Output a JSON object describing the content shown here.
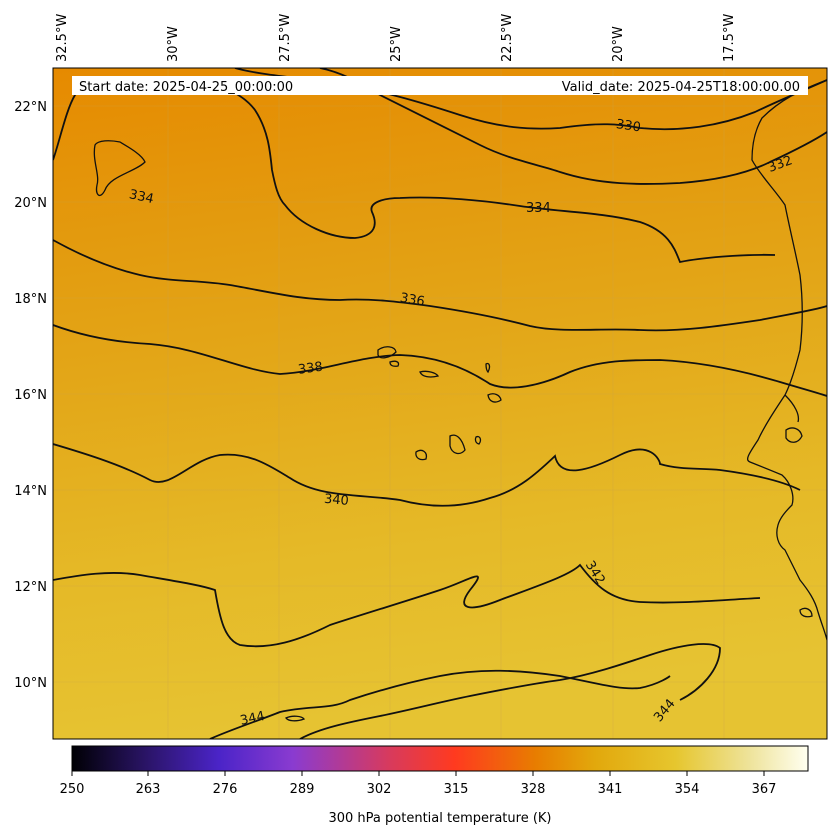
{
  "header": {
    "start_date": "Start date: 2025-04-25_00:00:00",
    "valid_date": "Valid_date: 2025-04-25T18:00:00.00"
  },
  "map": {
    "lon_labels": [
      "32.5°W",
      "30°W",
      "27.5°W",
      "25°W",
      "22.5°W",
      "20°W",
      "17.5°W"
    ],
    "lat_labels": [
      "22°N",
      "20°N",
      "18°N",
      "16°N",
      "14°N",
      "12°N",
      "10°N"
    ],
    "contour_labels": [
      "330",
      "332",
      "334",
      "334",
      "336",
      "338",
      "340",
      "342",
      "344",
      "344"
    ],
    "field_colors": {
      "north": "#e68a00",
      "mid": "#e4a517",
      "south": "#e6c12f"
    }
  },
  "colorbar": {
    "label": "300 hPa potential temperature (K)",
    "ticks": [
      "250",
      "263",
      "276",
      "289",
      "302",
      "315",
      "328",
      "341",
      "354",
      "367"
    ],
    "stops": [
      "#000004",
      "#2a1466",
      "#4b24c8",
      "#8a3bd0",
      "#d73a5e",
      "#ff3a1f",
      "#e87d00",
      "#e2a80c",
      "#e6c62e",
      "#eee39a",
      "#fffff0"
    ]
  }
}
